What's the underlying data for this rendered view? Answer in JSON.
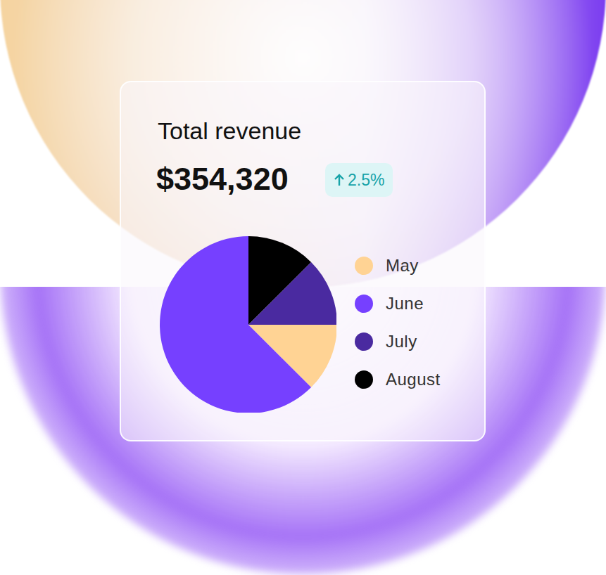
{
  "chart_data": {
    "type": "pie",
    "title": "Total revenue",
    "total": "$354,320",
    "change": "2.5%",
    "categories": [
      "May",
      "June",
      "July",
      "August"
    ],
    "values": [
      12.5,
      62.5,
      12.5,
      12.5
    ],
    "colors": [
      "#ffd394",
      "#7640ff",
      "#4a2aa0",
      "#000000"
    ],
    "legend": "right"
  }
}
